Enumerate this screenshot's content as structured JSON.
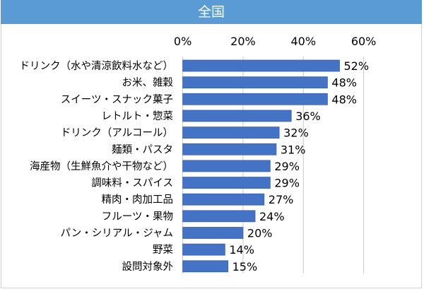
{
  "header": {
    "title": "全国"
  },
  "colors": {
    "header": "#5b9bd5",
    "bar": "#4472c4",
    "grid": "#c8c8c8"
  },
  "chart_data": {
    "type": "bar",
    "orientation": "horizontal",
    "title": "全国",
    "categories": [
      "ドリンク（水や清涼飲料水など）",
      "お米、雑穀",
      "スイーツ・スナック菓子",
      "レトルト・惣菜",
      "ドリンク（アルコール）",
      "麺類・パスタ",
      "海産物（生鮮魚介や干物など）",
      "調味料・スパイス",
      "精肉・肉加工品",
      "フルーツ・果物",
      "パン・シリアル・ジャム",
      "野菜",
      "設問対象外"
    ],
    "values": [
      52,
      48,
      48,
      36,
      32,
      31,
      29,
      29,
      27,
      24,
      20,
      14,
      15
    ],
    "value_labels": [
      "52%",
      "48%",
      "48%",
      "36%",
      "32%",
      "31%",
      "29%",
      "29%",
      "27%",
      "24%",
      "20%",
      "14%",
      "15%"
    ],
    "xlim": [
      0,
      60
    ],
    "ticks": [
      0,
      20,
      40,
      60
    ],
    "tick_labels": [
      "0%",
      "20%",
      "40%",
      "60%"
    ],
    "axis_position": "top",
    "grid": true,
    "legend": "none"
  }
}
